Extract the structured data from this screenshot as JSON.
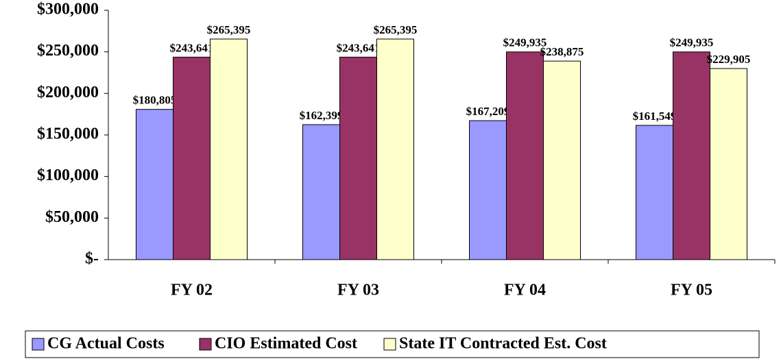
{
  "chart_data": {
    "type": "bar",
    "categories": [
      "FY 02",
      "FY 03",
      "FY 04",
      "FY 05"
    ],
    "series": [
      {
        "name": "CG Actual Costs",
        "color": "#9999ff",
        "values": [
          180805,
          162399,
          167209,
          161549
        ],
        "value_labels": [
          "$180,805",
          "$162,399",
          "$167,209",
          "$161,549"
        ]
      },
      {
        "name": "CIO Estimated Cost",
        "color": "#993366",
        "values": [
          243641,
          243641,
          249935,
          249935
        ],
        "value_labels": [
          "$243,641",
          "$243,641",
          "$249,935",
          "$249,935"
        ]
      },
      {
        "name": "State IT Contracted Est. Cost",
        "color": "#ffffcc",
        "values": [
          265395,
          265395,
          238875,
          229905
        ],
        "value_labels": [
          "$265,395",
          "$265,395",
          "$238,875",
          "$229,905"
        ]
      }
    ],
    "ylim": [
      0,
      300000
    ],
    "yticks": [
      {
        "value": 0,
        "label": "$-"
      },
      {
        "value": 50000,
        "label": "$50,000"
      },
      {
        "value": 100000,
        "label": "$100,000"
      },
      {
        "value": 150000,
        "label": "$150,000"
      },
      {
        "value": 200000,
        "label": "$200,000"
      },
      {
        "value": 250000,
        "label": "$250,000"
      },
      {
        "value": 300000,
        "label": "$300,000"
      }
    ],
    "legend": "bottom"
  }
}
